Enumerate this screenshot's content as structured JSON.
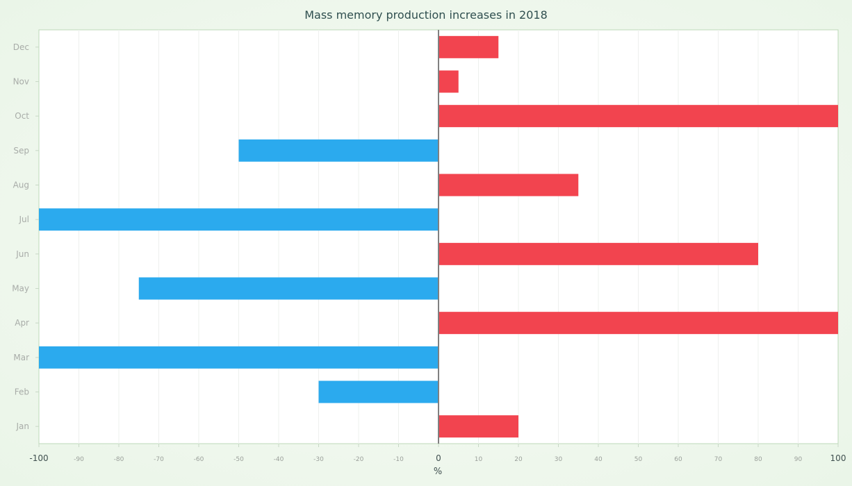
{
  "chart_data": {
    "type": "bar",
    "orientation": "horizontal",
    "title": "Mass memory production increases in 2018",
    "xlabel": "%",
    "ylabel": "",
    "xlim": [
      -100,
      100
    ],
    "x_ticks": [
      -100,
      -90,
      -80,
      -70,
      -60,
      -50,
      -40,
      -30,
      -20,
      -10,
      0,
      10,
      20,
      30,
      40,
      50,
      60,
      70,
      80,
      90,
      100
    ],
    "categories": [
      "Jan",
      "Feb",
      "Mar",
      "Apr",
      "May",
      "Jun",
      "Jul",
      "Aug",
      "Sep",
      "Oct",
      "Nov",
      "Dec"
    ],
    "values": [
      20,
      -30,
      -100,
      100,
      -75,
      80,
      -100,
      35,
      -50,
      100,
      5,
      15
    ],
    "colors": {
      "positive": "#f2444f",
      "negative": "#2baaee",
      "zero_line": "#808080",
      "plot_border": "#bcd9b8",
      "grid": "#eef0ee"
    },
    "grid": true,
    "legend": "none"
  }
}
